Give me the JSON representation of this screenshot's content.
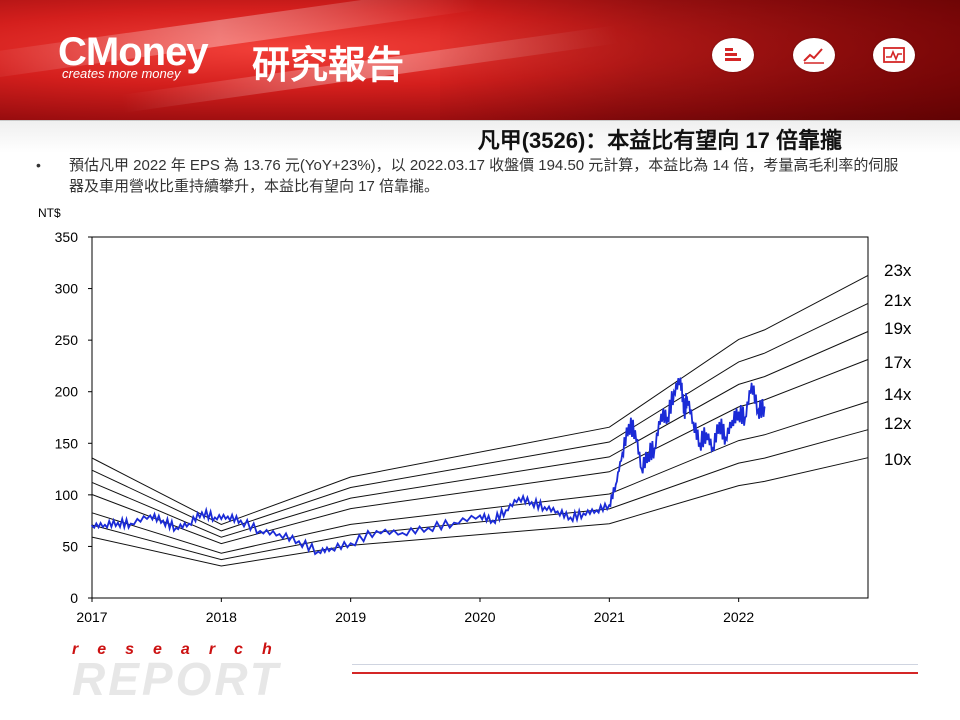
{
  "header": {
    "brand": "CMoney",
    "brand_zh": "研究報告",
    "tagline": "creates more money",
    "icons": [
      "bars-icon",
      "line-chart-icon",
      "pulse-chart-icon"
    ]
  },
  "slide": {
    "title": "凡甲(3526)：本益比有望向 17 倍靠攏",
    "note": "預估凡甲 2022 年 EPS 為 13.76 元(YoY+23%)，以 2022.03.17 收盤價 194.50 元計算，本益比為 14 倍，考量高毛利率的伺服器及車用營收比重持續攀升，本益比有望向 17 倍靠攏。"
  },
  "footer": {
    "red": "research",
    "grey": "REPORT"
  },
  "colors": {
    "price_line": "#1b2bd6",
    "band_line": "#111111",
    "accent_red": "#d42626"
  },
  "chart_data": {
    "type": "line",
    "title": "",
    "ylabel": "NT$",
    "xlabel": "",
    "ylim": [
      0,
      350
    ],
    "yticks": [
      "0",
      "50",
      "100",
      "150",
      "200",
      "250",
      "300",
      "350"
    ],
    "xlim": [
      2017.0,
      2023.0
    ],
    "xticks": [
      {
        "x": 2017.0,
        "label": "2017"
      },
      {
        "x": 2018.0,
        "label": "2018"
      },
      {
        "x": 2019.0,
        "label": "2019"
      },
      {
        "x": 2020.0,
        "label": "2020"
      },
      {
        "x": 2021.0,
        "label": "2021"
      },
      {
        "x": 2022.0,
        "label": "2022"
      }
    ],
    "eps_base": {
      "x": [
        2017.0,
        2018.0,
        2019.0,
        2021.0,
        2022.0,
        2022.2,
        2023.0
      ],
      "y": [
        5.9,
        3.1,
        5.1,
        7.2,
        10.9,
        11.3,
        13.6
      ]
    },
    "bands": [
      {
        "name": "23x",
        "multiple": 23
      },
      {
        "name": "21x",
        "multiple": 21
      },
      {
        "name": "19x",
        "multiple": 19
      },
      {
        "name": "17x",
        "multiple": 17
      },
      {
        "name": "14x",
        "multiple": 14
      },
      {
        "name": "12x",
        "multiple": 12
      },
      {
        "name": "10x",
        "multiple": 10
      }
    ],
    "series": [
      {
        "name": "",
        "x": [
          2017.0,
          2017.1,
          2017.2,
          2017.3,
          2017.45,
          2017.55,
          2017.65,
          2017.75,
          2017.85,
          2017.95,
          2018.05,
          2018.15,
          2018.3,
          2018.45,
          2018.6,
          2018.75,
          2018.85,
          2019.0,
          2019.2,
          2019.4,
          2019.6,
          2019.8,
          2020.0,
          2020.1,
          2020.2,
          2020.3,
          2020.4,
          2020.5,
          2020.6,
          2020.7,
          2020.8,
          2020.9,
          2021.0,
          2021.05,
          2021.1,
          2021.15,
          2021.2,
          2021.25,
          2021.3,
          2021.35,
          2021.4,
          2021.45,
          2021.5,
          2021.55,
          2021.58,
          2021.6,
          2021.65,
          2021.7,
          2021.75,
          2021.8,
          2021.85,
          2021.9,
          2021.95,
          2022.0,
          2022.05,
          2022.1,
          2022.15,
          2022.2
        ],
        "y": [
          70,
          71,
          73,
          72,
          80,
          75,
          68,
          72,
          83,
          78,
          79,
          75,
          65,
          62,
          55,
          45,
          48,
          53,
          65,
          63,
          68,
          73,
          80,
          75,
          85,
          97,
          93,
          88,
          84,
          78,
          82,
          85,
          90,
          110,
          140,
          168,
          162,
          125,
          140,
          145,
          178,
          175,
          200,
          213,
          180,
          195,
          170,
          150,
          160,
          145,
          170,
          155,
          172,
          180,
          175,
          208,
          182,
          185
        ]
      }
    ],
    "legend": "right-edge labels"
  }
}
